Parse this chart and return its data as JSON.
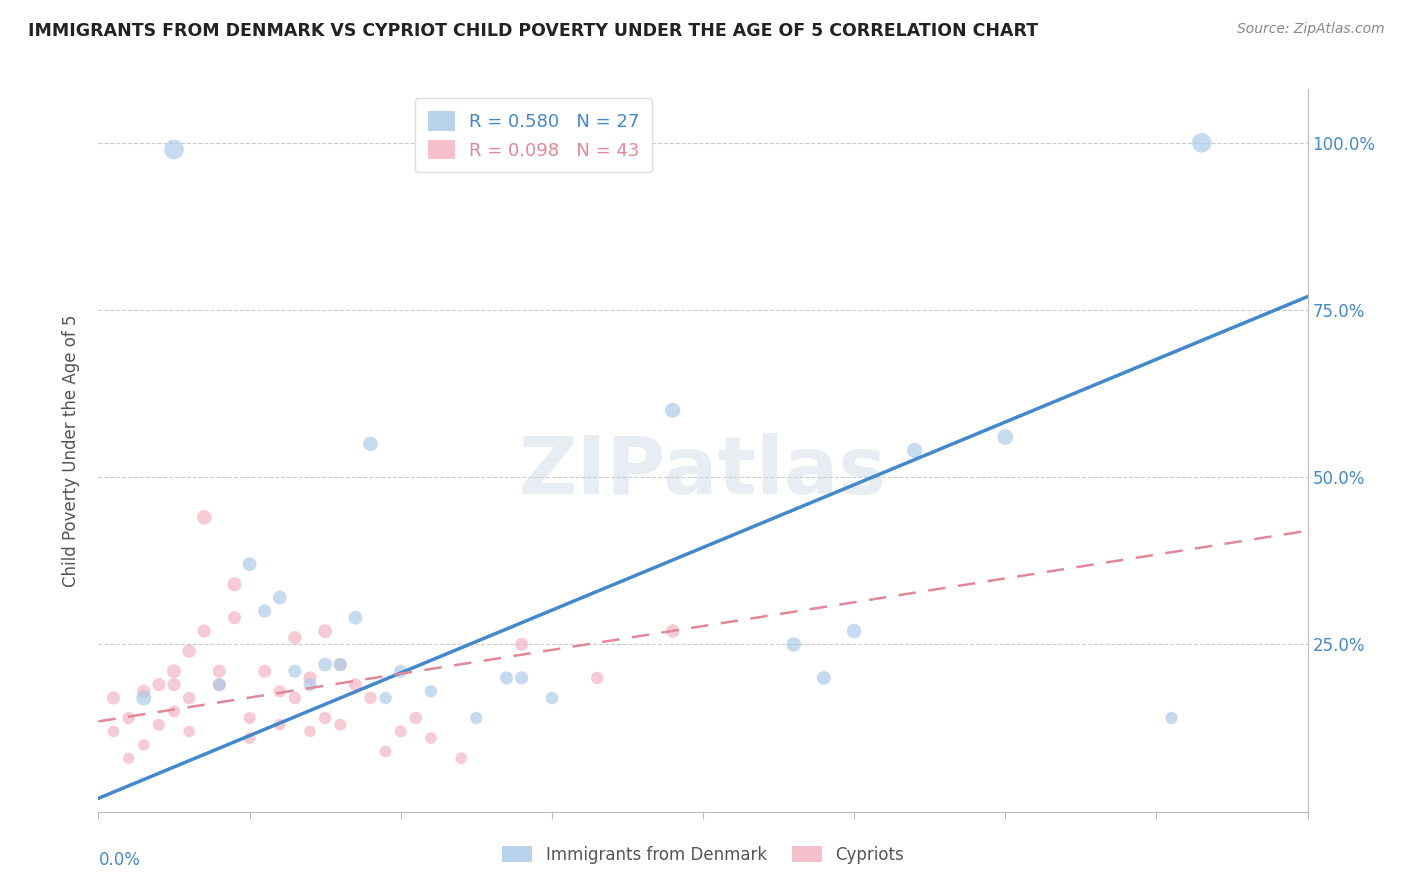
{
  "title": "IMMIGRANTS FROM DENMARK VS CYPRIOT CHILD POVERTY UNDER THE AGE OF 5 CORRELATION CHART",
  "source": "Source: ZipAtlas.com",
  "ylabel": "Child Poverty Under the Age of 5",
  "ytick_labels": [
    "25.0%",
    "50.0%",
    "75.0%",
    "100.0%"
  ],
  "ytick_values": [
    0.25,
    0.5,
    0.75,
    1.0
  ],
  "xmin": 0.0,
  "xmax": 0.08,
  "ymin": 0.0,
  "ymax": 1.08,
  "legend_entry1": "R = 0.580   N = 27",
  "legend_entry2": "R = 0.098   N = 43",
  "watermark": "ZIPatlas",
  "blue_scatter_color": "#a8c8e8",
  "pink_scatter_color": "#f4afc0",
  "blue_line_color": "#4488cc",
  "pink_line_color": "#e08898",
  "blue_trend_x0": 0.0,
  "blue_trend_y0": 0.02,
  "blue_trend_x1": 0.08,
  "blue_trend_y1": 0.77,
  "pink_trend_x0": 0.0,
  "pink_trend_y0": 0.135,
  "pink_trend_x1": 0.08,
  "pink_trend_y1": 0.42,
  "denmark_x": [
    0.003,
    0.005,
    0.008,
    0.01,
    0.011,
    0.012,
    0.013,
    0.014,
    0.015,
    0.016,
    0.017,
    0.018,
    0.019,
    0.02,
    0.022,
    0.025,
    0.027,
    0.028,
    0.03,
    0.038,
    0.046,
    0.048,
    0.05,
    0.054,
    0.06,
    0.071,
    0.073
  ],
  "denmark_y": [
    0.17,
    0.99,
    0.19,
    0.37,
    0.3,
    0.32,
    0.21,
    0.19,
    0.22,
    0.22,
    0.29,
    0.55,
    0.17,
    0.21,
    0.18,
    0.14,
    0.2,
    0.2,
    0.17,
    0.6,
    0.25,
    0.2,
    0.27,
    0.54,
    0.56,
    0.14,
    1.0
  ],
  "cyprus_x": [
    0.001,
    0.001,
    0.002,
    0.002,
    0.003,
    0.003,
    0.004,
    0.004,
    0.005,
    0.005,
    0.005,
    0.006,
    0.006,
    0.006,
    0.007,
    0.007,
    0.008,
    0.008,
    0.009,
    0.009,
    0.01,
    0.01,
    0.011,
    0.012,
    0.012,
    0.013,
    0.013,
    0.014,
    0.014,
    0.015,
    0.015,
    0.016,
    0.016,
    0.017,
    0.018,
    0.019,
    0.02,
    0.021,
    0.022,
    0.024,
    0.028,
    0.033,
    0.038
  ],
  "cyprus_y": [
    0.17,
    0.12,
    0.14,
    0.08,
    0.18,
    0.1,
    0.19,
    0.13,
    0.21,
    0.19,
    0.15,
    0.24,
    0.17,
    0.12,
    0.44,
    0.27,
    0.19,
    0.21,
    0.34,
    0.29,
    0.14,
    0.11,
    0.21,
    0.18,
    0.13,
    0.26,
    0.17,
    0.2,
    0.12,
    0.27,
    0.14,
    0.22,
    0.13,
    0.19,
    0.17,
    0.09,
    0.12,
    0.14,
    0.11,
    0.08,
    0.25,
    0.2,
    0.27
  ],
  "denmark_sizes": [
    120,
    200,
    90,
    100,
    90,
    100,
    90,
    90,
    100,
    90,
    100,
    110,
    80,
    90,
    80,
    80,
    90,
    90,
    80,
    120,
    110,
    100,
    110,
    120,
    130,
    80,
    200
  ],
  "cyprus_sizes": [
    90,
    70,
    80,
    65,
    90,
    70,
    90,
    75,
    100,
    90,
    75,
    95,
    80,
    70,
    110,
    90,
    85,
    90,
    105,
    90,
    75,
    70,
    90,
    80,
    70,
    95,
    80,
    90,
    70,
    100,
    80,
    90,
    75,
    85,
    80,
    70,
    75,
    80,
    70,
    70,
    90,
    80,
    95
  ]
}
